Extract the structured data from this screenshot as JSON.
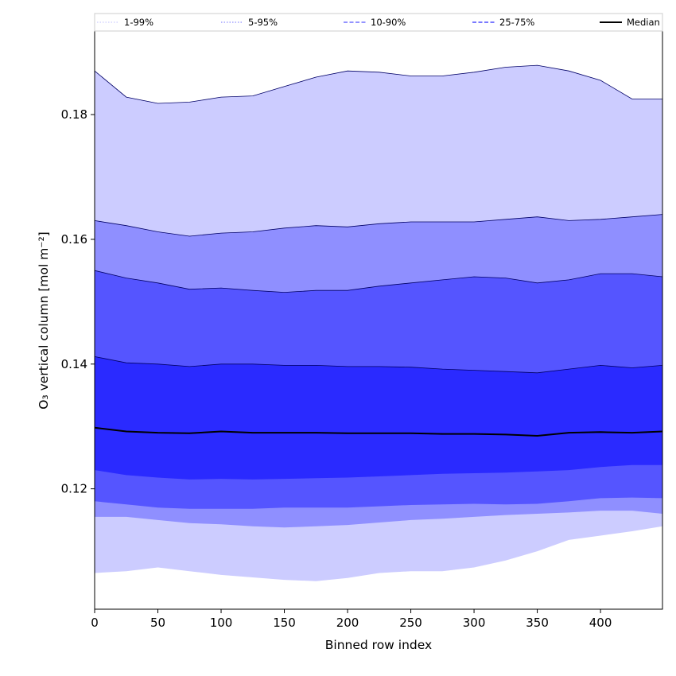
{
  "chart_data": {
    "type": "area",
    "title": "",
    "xlabel": "Binned row index",
    "ylabel": "O₃ vertical column [mol m⁻²]",
    "xlim": [
      0,
      449
    ],
    "ylim": [
      0.1007,
      0.1934
    ],
    "xticks": [
      0,
      50,
      100,
      150,
      200,
      250,
      300,
      350,
      400
    ],
    "yticks": [
      0.12,
      0.14,
      0.16,
      0.18
    ],
    "ytick_labels": [
      "0.12",
      "0.14",
      "0.16",
      "0.18"
    ],
    "grid": false,
    "legend_position": "top",
    "x": [
      0,
      25,
      50,
      75,
      100,
      125,
      150,
      175,
      200,
      225,
      250,
      275,
      300,
      325,
      350,
      375,
      400,
      425,
      449
    ],
    "bands": [
      {
        "name": "1-99%",
        "color": "#ccccff",
        "lower": [
          0.1065,
          0.1068,
          0.1074,
          0.1068,
          0.1062,
          0.1058,
          0.1054,
          0.1052,
          0.1057,
          0.1065,
          0.1068,
          0.1068,
          0.1074,
          0.1085,
          0.11,
          0.1118,
          0.1125,
          0.1132,
          0.114
        ],
        "upper": [
          0.187,
          0.1828,
          0.1818,
          0.182,
          0.1828,
          0.183,
          0.1845,
          0.186,
          0.187,
          0.1868,
          0.1862,
          0.1862,
          0.1868,
          0.1876,
          0.1879,
          0.187,
          0.1855,
          0.1825,
          0.1825
        ]
      },
      {
        "name": "5-95%",
        "color": "#8f8fff",
        "lower": [
          0.1155,
          0.1155,
          0.115,
          0.1145,
          0.1143,
          0.114,
          0.1138,
          0.114,
          0.1142,
          0.1146,
          0.115,
          0.1152,
          0.1155,
          0.1158,
          0.116,
          0.1162,
          0.1165,
          0.1165,
          0.116
        ],
        "upper": [
          0.163,
          0.1622,
          0.1612,
          0.1605,
          0.161,
          0.1612,
          0.1618,
          0.1622,
          0.162,
          0.1625,
          0.1628,
          0.1628,
          0.1628,
          0.1632,
          0.1636,
          0.163,
          0.1632,
          0.1636,
          0.164
        ]
      },
      {
        "name": "10-90%",
        "color": "#5555ff",
        "lower": [
          0.118,
          0.1175,
          0.117,
          0.1168,
          0.1168,
          0.1168,
          0.117,
          0.117,
          0.117,
          0.1172,
          0.1174,
          0.1175,
          0.1176,
          0.1175,
          0.1176,
          0.118,
          0.1185,
          0.1186,
          0.1185
        ],
        "upper": [
          0.155,
          0.1538,
          0.153,
          0.152,
          0.1522,
          0.1518,
          0.1515,
          0.1518,
          0.1518,
          0.1525,
          0.153,
          0.1535,
          0.154,
          0.1538,
          0.153,
          0.1535,
          0.1545,
          0.1545,
          0.154
        ]
      },
      {
        "name": "25-75%",
        "color": "#2a2aff",
        "lower": [
          0.123,
          0.1222,
          0.1218,
          0.1215,
          0.1216,
          0.1215,
          0.1216,
          0.1217,
          0.1218,
          0.122,
          0.1222,
          0.1224,
          0.1225,
          0.1226,
          0.1228,
          0.123,
          0.1235,
          0.1238,
          0.1238
        ],
        "upper": [
          0.1412,
          0.1402,
          0.14,
          0.1396,
          0.14,
          0.14,
          0.1398,
          0.1398,
          0.1396,
          0.1396,
          0.1395,
          0.1392,
          0.139,
          0.1388,
          0.1386,
          0.1392,
          0.1398,
          0.1394,
          0.1398
        ]
      }
    ],
    "median": {
      "name": "Median",
      "color": "#000000",
      "values": [
        0.1298,
        0.1292,
        0.129,
        0.1289,
        0.1292,
        0.129,
        0.129,
        0.129,
        0.1289,
        0.1289,
        0.1289,
        0.1288,
        0.1288,
        0.1287,
        0.1285,
        0.129,
        0.1291,
        0.129,
        0.1292
      ]
    },
    "legend": [
      {
        "label": "1-99%",
        "color": "#ccccff",
        "style": "dotted"
      },
      {
        "label": "5-95%",
        "color": "#8f8fff",
        "style": "dotted"
      },
      {
        "label": "10-90%",
        "color": "#5555ff",
        "style": "dashed"
      },
      {
        "label": "25-75%",
        "color": "#2a2aff",
        "style": "dashed"
      },
      {
        "label": "Median",
        "color": "#000000",
        "style": "solid"
      }
    ]
  }
}
